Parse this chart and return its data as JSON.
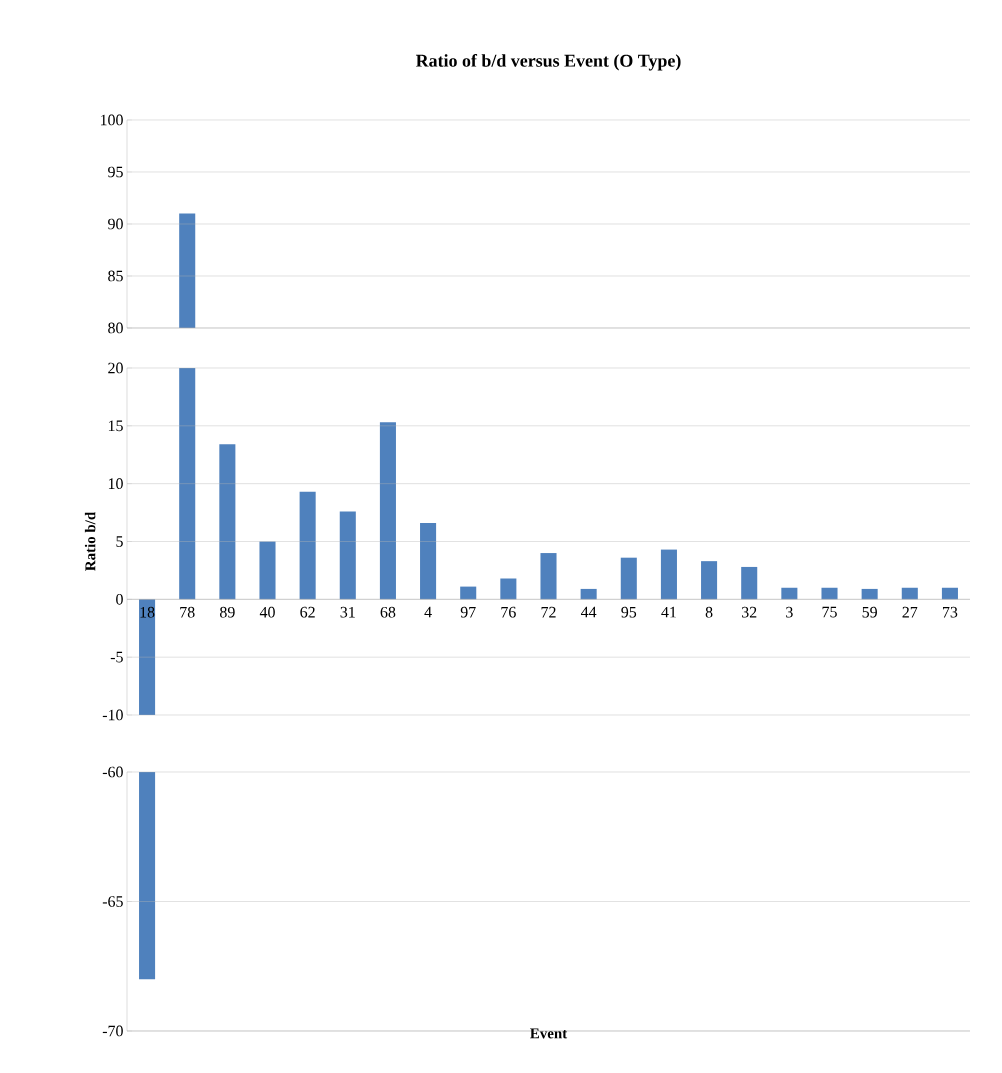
{
  "chart_data": [
    {
      "type": "bar",
      "title": "Ratio of b/d versus Event (O Type)",
      "categories": [
        "18",
        "78",
        "89",
        "40",
        "62",
        "31",
        "68",
        "4",
        "97",
        "76",
        "72",
        "44",
        "95",
        "41",
        "8",
        "32",
        "3",
        "75",
        "59",
        "27",
        "73"
      ],
      "values": [
        null,
        11,
        null,
        null,
        null,
        null,
        null,
        null,
        null,
        null,
        null,
        null,
        null,
        null,
        null,
        null,
        null,
        null,
        null,
        null,
        null
      ],
      "base": [
        null,
        80,
        null,
        null,
        null,
        null,
        null,
        null,
        null,
        null,
        null,
        null,
        null,
        null,
        null,
        null,
        null,
        null,
        null,
        null,
        null
      ],
      "color": "#4f81bd",
      "ylim": [
        80,
        100
      ],
      "yticks": [
        80,
        85,
        90,
        95,
        100
      ],
      "grid": "y",
      "tick_labels": "y"
    },
    {
      "type": "bar",
      "ylabel": "Ratio b/d",
      "categories": [
        "18",
        "78",
        "89",
        "40",
        "62",
        "31",
        "68",
        "4",
        "97",
        "76",
        "72",
        "44",
        "95",
        "41",
        "8",
        "32",
        "3",
        "75",
        "59",
        "27",
        "73"
      ],
      "values": [
        -10,
        20,
        13.4,
        5.0,
        9.3,
        7.6,
        15.3,
        6.6,
        1.1,
        1.8,
        4.0,
        0.9,
        3.6,
        4.3,
        3.3,
        2.8,
        1.0,
        1.0,
        0.9,
        1.0,
        1.0
      ],
      "base": [
        0,
        0,
        0,
        0,
        0,
        0,
        0,
        0,
        0,
        0,
        0,
        0,
        0,
        0,
        0,
        0,
        0,
        0,
        0,
        0,
        0
      ],
      "color": "#4f81bd",
      "ylim": [
        -10,
        20
      ],
      "yticks": [
        -10,
        -5,
        0,
        5,
        10,
        15,
        20
      ],
      "grid": "y"
    },
    {
      "type": "bar",
      "xlabel": "Event",
      "categories": [
        "18",
        "78",
        "89",
        "40",
        "62",
        "31",
        "68",
        "4",
        "97",
        "76",
        "72",
        "44",
        "95",
        "41",
        "8",
        "32",
        "3",
        "75",
        "59",
        "27",
        "73"
      ],
      "values": [
        -8,
        null,
        null,
        null,
        null,
        null,
        null,
        null,
        null,
        null,
        null,
        null,
        null,
        null,
        null,
        null,
        null,
        null,
        null,
        null,
        null
      ],
      "base": [
        -60,
        null,
        null,
        null,
        null,
        null,
        null,
        null,
        null,
        null,
        null,
        null,
        null,
        null,
        null,
        null,
        null,
        null,
        null,
        null,
        null
      ],
      "color": "#4f81bd",
      "ylim": [
        -70,
        -60
      ],
      "yticks": [
        -70,
        -65,
        -60
      ],
      "grid": "y",
      "tick_labels": "y"
    }
  ]
}
